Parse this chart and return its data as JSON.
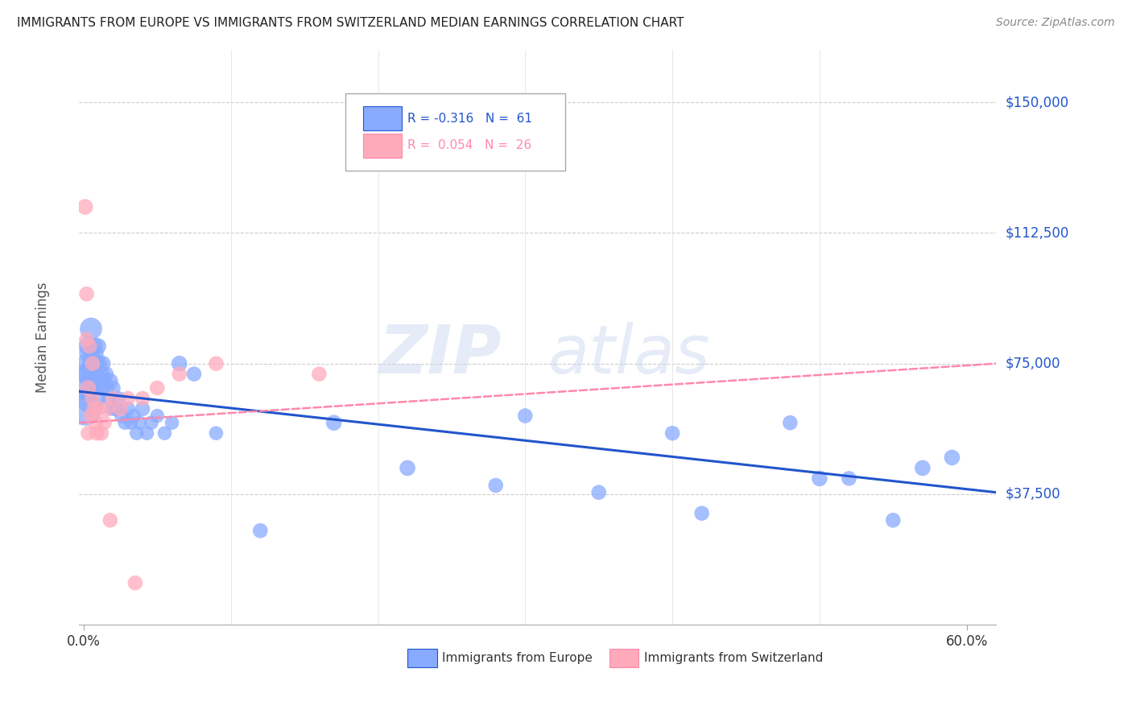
{
  "title": "IMMIGRANTS FROM EUROPE VS IMMIGRANTS FROM SWITZERLAND MEDIAN EARNINGS CORRELATION CHART",
  "source": "Source: ZipAtlas.com",
  "ylabel": "Median Earnings",
  "yticks": [
    37500,
    75000,
    112500,
    150000
  ],
  "ytick_labels": [
    "$37,500",
    "$75,000",
    "$112,500",
    "$150,000"
  ],
  "ylim": [
    0,
    165000
  ],
  "xlim": [
    -0.003,
    0.62
  ],
  "color_blue": "#88aaff",
  "color_pink": "#ffaabb",
  "color_blue_line": "#2255cc",
  "color_pink_line": "#ff88aa",
  "watermark_zip": "ZIP",
  "watermark_atlas": "atlas",
  "blue_scatter_x": [
    0.001,
    0.002,
    0.002,
    0.003,
    0.003,
    0.004,
    0.004,
    0.005,
    0.005,
    0.005,
    0.006,
    0.006,
    0.007,
    0.007,
    0.008,
    0.008,
    0.009,
    0.01,
    0.01,
    0.011,
    0.012,
    0.013,
    0.014,
    0.015,
    0.016,
    0.017,
    0.018,
    0.019,
    0.02,
    0.022,
    0.024,
    0.026,
    0.028,
    0.03,
    0.032,
    0.034,
    0.036,
    0.038,
    0.04,
    0.043,
    0.046,
    0.05,
    0.055,
    0.06,
    0.065,
    0.075,
    0.09,
    0.12,
    0.17,
    0.22,
    0.28,
    0.35,
    0.42,
    0.5,
    0.55,
    0.57,
    0.59,
    0.3,
    0.4,
    0.48,
    0.52
  ],
  "blue_scatter_y": [
    62000,
    68000,
    72000,
    75000,
    80000,
    78000,
    70000,
    65000,
    72000,
    85000,
    75000,
    68000,
    80000,
    72000,
    75000,
    78000,
    72000,
    75000,
    80000,
    68000,
    72000,
    75000,
    70000,
    72000,
    68000,
    65000,
    70000,
    62000,
    68000,
    62000,
    65000,
    60000,
    58000,
    62000,
    58000,
    60000,
    55000,
    58000,
    62000,
    55000,
    58000,
    60000,
    55000,
    58000,
    75000,
    72000,
    55000,
    27000,
    58000,
    45000,
    40000,
    38000,
    32000,
    42000,
    30000,
    45000,
    48000,
    60000,
    55000,
    58000,
    42000
  ],
  "blue_scatter_size": [
    900,
    500,
    350,
    400,
    300,
    350,
    250,
    700,
    500,
    400,
    350,
    300,
    250,
    280,
    280,
    220,
    200,
    250,
    200,
    200,
    220,
    200,
    180,
    200,
    180,
    180,
    200,
    160,
    180,
    180,
    160,
    180,
    160,
    180,
    160,
    160,
    160,
    160,
    180,
    160,
    160,
    160,
    160,
    160,
    200,
    180,
    160,
    180,
    200,
    200,
    180,
    180,
    180,
    200,
    180,
    200,
    200,
    180,
    180,
    180,
    180
  ],
  "pink_scatter_x": [
    0.001,
    0.002,
    0.003,
    0.004,
    0.005,
    0.006,
    0.007,
    0.008,
    0.009,
    0.01,
    0.012,
    0.014,
    0.016,
    0.018,
    0.02,
    0.025,
    0.03,
    0.035,
    0.04,
    0.05,
    0.065,
    0.09,
    0.16,
    0.002,
    0.003,
    0.006
  ],
  "pink_scatter_y": [
    120000,
    95000,
    68000,
    80000,
    60000,
    65000,
    62000,
    58000,
    55000,
    62000,
    55000,
    58000,
    62000,
    30000,
    65000,
    62000,
    65000,
    12000,
    65000,
    68000,
    72000,
    75000,
    72000,
    82000,
    55000,
    75000
  ],
  "pink_scatter_size": [
    200,
    180,
    200,
    180,
    180,
    180,
    180,
    180,
    180,
    180,
    180,
    180,
    180,
    180,
    180,
    180,
    180,
    180,
    180,
    180,
    180,
    180,
    180,
    180,
    180,
    180
  ],
  "blue_line_x0": -0.003,
  "blue_line_x1": 0.62,
  "blue_line_y0": 67000,
  "blue_line_y1": 38000,
  "pink_line_x0": -0.003,
  "pink_line_x1": 0.62,
  "pink_line_y0": 58000,
  "pink_line_y1": 75000
}
